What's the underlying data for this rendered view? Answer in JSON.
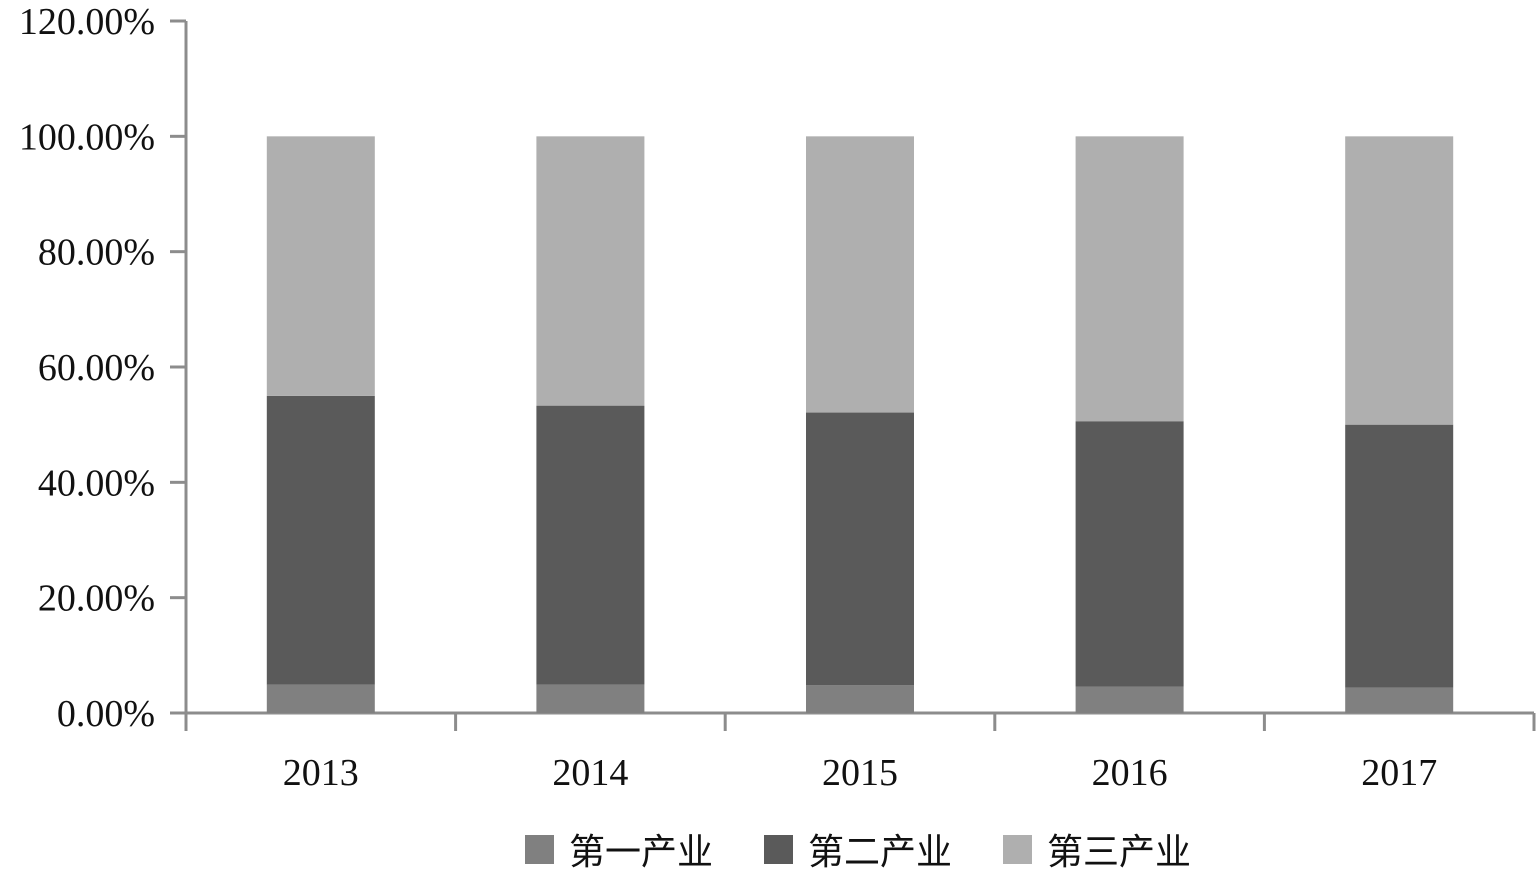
{
  "chart_data": {
    "type": "bar",
    "stacked": true,
    "title": "",
    "xlabel": "",
    "ylabel": "",
    "categories": [
      "2013",
      "2014",
      "2015",
      "2016",
      "2017"
    ],
    "series": [
      {
        "name": "第一产业",
        "color": "#808080",
        "values": [
          4.9,
          4.9,
          4.8,
          4.6,
          4.4
        ]
      },
      {
        "name": "第二产业",
        "color": "#5a5a5a",
        "values": [
          50.1,
          48.4,
          47.3,
          46.0,
          45.6
        ]
      },
      {
        "name": "第三产业",
        "color": "#afafaf",
        "values": [
          45.0,
          46.7,
          47.9,
          49.4,
          50.0
        ]
      }
    ],
    "ylim": [
      0,
      120
    ],
    "yticks": [
      "0.00%",
      "20.00%",
      "40.00%",
      "60.00%",
      "80.00%",
      "100.00%",
      "120.00%"
    ],
    "ytick_values": [
      0,
      20,
      40,
      60,
      80,
      100,
      120
    ],
    "grid": false,
    "legend_position": "bottom"
  }
}
